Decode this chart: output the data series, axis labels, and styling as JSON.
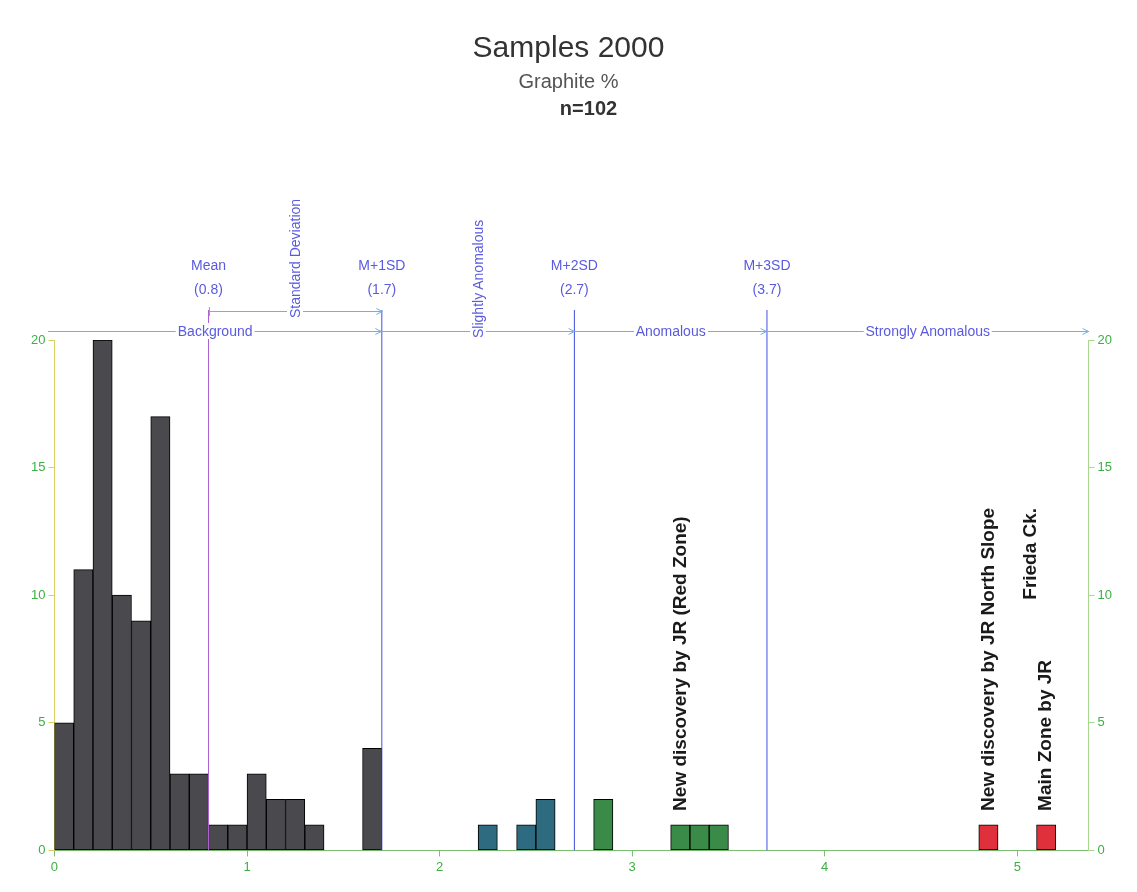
{
  "chart_data": {
    "type": "histogram",
    "title": "Samples 2000",
    "subtitle": "Graphite %",
    "bins": [
      0,
      0.1,
      0.2,
      0.3,
      0.4,
      0.5,
      0.6,
      0.7,
      0.8,
      0.9,
      1.0,
      1.1,
      1.2,
      1.3,
      1.4,
      1.5,
      1.6,
      1.7,
      1.8,
      1.9,
      2.0,
      2.1,
      2.2,
      2.3,
      2.4,
      2.5,
      2.6,
      2.7,
      2.8,
      2.9,
      3.0,
      3.1,
      3.2,
      3.3,
      3.4,
      3.5,
      3.6,
      3.7,
      3.8,
      3.9,
      4.0,
      4.1,
      4.2,
      4.3,
      4.4,
      4.5,
      4.6,
      4.7,
      4.8,
      4.9,
      5.0,
      5.1,
      5.2,
      5.3
    ],
    "values": [
      5,
      11,
      20,
      10,
      9,
      17,
      3,
      3,
      1,
      1,
      3,
      2,
      2,
      1,
      0,
      0,
      4,
      0,
      0,
      0,
      0,
      0,
      1,
      0,
      1,
      2,
      0,
      0,
      2,
      0,
      0,
      0,
      1,
      1,
      1,
      0,
      0,
      0,
      0,
      0,
      0,
      0,
      0,
      0,
      0,
      0,
      0,
      0,
      1,
      0,
      0,
      1,
      0
    ],
    "colors": [
      "#4a4a4e",
      "#4a4a4e",
      "#4a4a4e",
      "#4a4a4e",
      "#4a4a4e",
      "#4a4a4e",
      "#4a4a4e",
      "#4a4a4e",
      "#4a4a4e",
      "#4a4a4e",
      "#4a4a4e",
      "#4a4a4e",
      "#4a4a4e",
      "#4a4a4e",
      "#4a4a4e",
      "#4a4a4e",
      "#4a4a4e",
      "#4a4a4e",
      "#4a4a4e",
      "#4a4a4e",
      "#4a4a4e",
      "#4a4a4e",
      "#2e6b80",
      "#2e6b80",
      "#2e6b80",
      "#2e6b80",
      "#2e6b80",
      "#3a8a48",
      "#3a8a48",
      "#3a8a48",
      "#3a8a48",
      "#3a8a48",
      "#3a8a48",
      "#3a8a48",
      "#3a8a48",
      "#3a8a48",
      "#3a8a48",
      "#3a8a48",
      "#3a8a48",
      "#3a8a48",
      "#3a8a48",
      "#3a8a48",
      "#3a8a48",
      "#3a8a48",
      "#3a8a48",
      "#3a8a48",
      "#3a8a48",
      "#3a8a48",
      "#e0303c",
      "#e0303c",
      "#e0303c",
      "#e0303c",
      "#e0303c"
    ],
    "xlim": [
      0,
      5.37
    ],
    "xticks": [
      0,
      1,
      2,
      3,
      4,
      5
    ],
    "ylim": [
      0,
      20
    ],
    "yticks": [
      0,
      5,
      10,
      15,
      20
    ],
    "y2lim": [
      0,
      20
    ],
    "y2ticks": [
      0,
      5,
      10,
      15,
      20
    ],
    "grid": false,
    "ref_lines": [
      {
        "axis": "x",
        "value": 0.8,
        "label": "Mean (0.8)",
        "color": "#b060d0"
      },
      {
        "axis": "x",
        "value": 1.7,
        "label": "M+1SD (1.7)",
        "color": "#4050e0"
      },
      {
        "axis": "x",
        "value": 2.7,
        "label": "M+2SD (2.7)",
        "color": "#4050e0"
      },
      {
        "axis": "x",
        "value": 3.7,
        "label": "M+3SD (3.7)",
        "color": "#4050e0"
      }
    ],
    "annotations": [
      "n=102",
      "Background",
      "Standard Deviation",
      "Slightly Anomalous",
      "Anomalous",
      "Strongly Anomalous",
      {
        "text": "New discovery by JR (Red Zone)",
        "x": 3.25,
        "y": 1
      },
      {
        "text": "New discovery by JR North Slope Frieda Ck.",
        "x": 4.85,
        "y": 1
      },
      {
        "text": "Main Zone by JR",
        "x": 5.15,
        "y": 1
      }
    ]
  }
}
